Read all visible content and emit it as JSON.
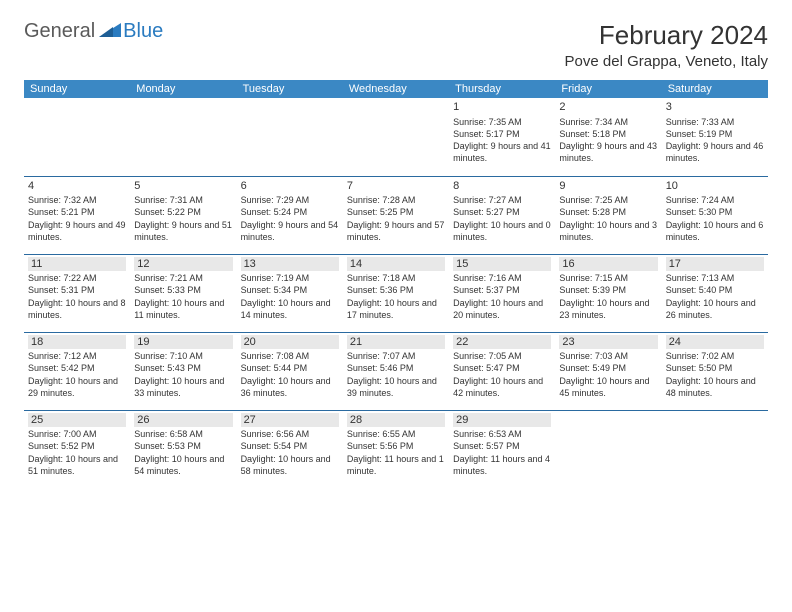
{
  "brand": {
    "part1": "General",
    "part2": "Blue"
  },
  "title": "February 2024",
  "location": "Pove del Grappa, Veneto, Italy",
  "colors": {
    "header_bg": "#3b88c4",
    "header_text": "#ffffff",
    "rule": "#2a6aa0",
    "shade": "#e8e8e8",
    "brand_gray": "#5a5a5a",
    "brand_blue": "#2a7bc0"
  },
  "columns": [
    "Sunday",
    "Monday",
    "Tuesday",
    "Wednesday",
    "Thursday",
    "Friday",
    "Saturday"
  ],
  "weeks": [
    [
      {
        "blank": true
      },
      {
        "blank": true
      },
      {
        "blank": true
      },
      {
        "blank": true
      },
      {
        "day": "1",
        "sunrise": "7:35 AM",
        "sunset": "5:17 PM",
        "daylight": "9 hours and 41 minutes."
      },
      {
        "day": "2",
        "sunrise": "7:34 AM",
        "sunset": "5:18 PM",
        "daylight": "9 hours and 43 minutes."
      },
      {
        "day": "3",
        "sunrise": "7:33 AM",
        "sunset": "5:19 PM",
        "daylight": "9 hours and 46 minutes."
      }
    ],
    [
      {
        "day": "4",
        "sunrise": "7:32 AM",
        "sunset": "5:21 PM",
        "daylight": "9 hours and 49 minutes."
      },
      {
        "day": "5",
        "sunrise": "7:31 AM",
        "sunset": "5:22 PM",
        "daylight": "9 hours and 51 minutes."
      },
      {
        "day": "6",
        "sunrise": "7:29 AM",
        "sunset": "5:24 PM",
        "daylight": "9 hours and 54 minutes."
      },
      {
        "day": "7",
        "sunrise": "7:28 AM",
        "sunset": "5:25 PM",
        "daylight": "9 hours and 57 minutes."
      },
      {
        "day": "8",
        "sunrise": "7:27 AM",
        "sunset": "5:27 PM",
        "daylight": "10 hours and 0 minutes."
      },
      {
        "day": "9",
        "sunrise": "7:25 AM",
        "sunset": "5:28 PM",
        "daylight": "10 hours and 3 minutes."
      },
      {
        "day": "10",
        "sunrise": "7:24 AM",
        "sunset": "5:30 PM",
        "daylight": "10 hours and 6 minutes."
      }
    ],
    [
      {
        "day": "11",
        "shade": true,
        "sunrise": "7:22 AM",
        "sunset": "5:31 PM",
        "daylight": "10 hours and 8 minutes."
      },
      {
        "day": "12",
        "shade": true,
        "sunrise": "7:21 AM",
        "sunset": "5:33 PM",
        "daylight": "10 hours and 11 minutes."
      },
      {
        "day": "13",
        "shade": true,
        "sunrise": "7:19 AM",
        "sunset": "5:34 PM",
        "daylight": "10 hours and 14 minutes."
      },
      {
        "day": "14",
        "shade": true,
        "sunrise": "7:18 AM",
        "sunset": "5:36 PM",
        "daylight": "10 hours and 17 minutes."
      },
      {
        "day": "15",
        "shade": true,
        "sunrise": "7:16 AM",
        "sunset": "5:37 PM",
        "daylight": "10 hours and 20 minutes."
      },
      {
        "day": "16",
        "shade": true,
        "sunrise": "7:15 AM",
        "sunset": "5:39 PM",
        "daylight": "10 hours and 23 minutes."
      },
      {
        "day": "17",
        "shade": true,
        "sunrise": "7:13 AM",
        "sunset": "5:40 PM",
        "daylight": "10 hours and 26 minutes."
      }
    ],
    [
      {
        "day": "18",
        "shade": true,
        "sunrise": "7:12 AM",
        "sunset": "5:42 PM",
        "daylight": "10 hours and 29 minutes."
      },
      {
        "day": "19",
        "shade": true,
        "sunrise": "7:10 AM",
        "sunset": "5:43 PM",
        "daylight": "10 hours and 33 minutes."
      },
      {
        "day": "20",
        "shade": true,
        "sunrise": "7:08 AM",
        "sunset": "5:44 PM",
        "daylight": "10 hours and 36 minutes."
      },
      {
        "day": "21",
        "shade": true,
        "sunrise": "7:07 AM",
        "sunset": "5:46 PM",
        "daylight": "10 hours and 39 minutes."
      },
      {
        "day": "22",
        "shade": true,
        "sunrise": "7:05 AM",
        "sunset": "5:47 PM",
        "daylight": "10 hours and 42 minutes."
      },
      {
        "day": "23",
        "shade": true,
        "sunrise": "7:03 AM",
        "sunset": "5:49 PM",
        "daylight": "10 hours and 45 minutes."
      },
      {
        "day": "24",
        "shade": true,
        "sunrise": "7:02 AM",
        "sunset": "5:50 PM",
        "daylight": "10 hours and 48 minutes."
      }
    ],
    [
      {
        "day": "25",
        "shade": true,
        "sunrise": "7:00 AM",
        "sunset": "5:52 PM",
        "daylight": "10 hours and 51 minutes."
      },
      {
        "day": "26",
        "shade": true,
        "sunrise": "6:58 AM",
        "sunset": "5:53 PM",
        "daylight": "10 hours and 54 minutes."
      },
      {
        "day": "27",
        "shade": true,
        "sunrise": "6:56 AM",
        "sunset": "5:54 PM",
        "daylight": "10 hours and 58 minutes."
      },
      {
        "day": "28",
        "shade": true,
        "sunrise": "6:55 AM",
        "sunset": "5:56 PM",
        "daylight": "11 hours and 1 minute."
      },
      {
        "day": "29",
        "shade": true,
        "sunrise": "6:53 AM",
        "sunset": "5:57 PM",
        "daylight": "11 hours and 4 minutes."
      },
      {
        "blank": true
      },
      {
        "blank": true
      }
    ]
  ]
}
